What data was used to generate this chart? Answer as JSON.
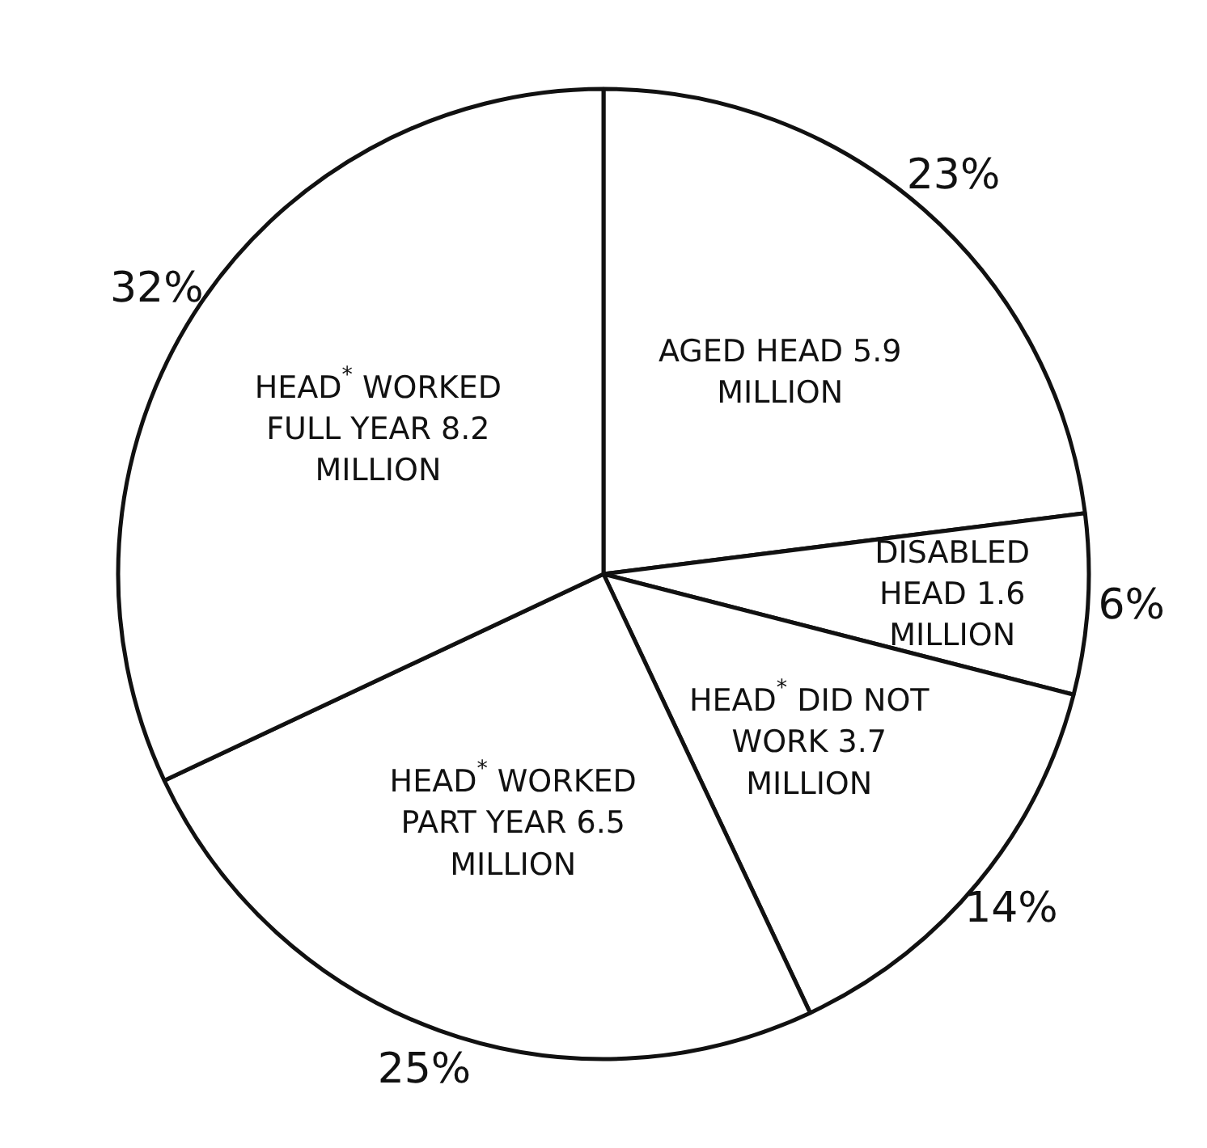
{
  "chart_data": {
    "type": "pie",
    "categories": [
      "AGED HEAD 5.9 MILLION",
      "DISABLED HEAD 1.6 MILLION",
      "HEAD$^{*}$ DID NOT WORK 3.7 MILLION",
      "HEAD$^{*}$ WORKED PART YEAR 6.5 MILLION",
      "HEAD$^{*}$ WORKED FULL YEAR 8.2 MILLION"
    ],
    "values": [
      23,
      6,
      14,
      25,
      32
    ],
    "value_labels": [
      "23%",
      "6%",
      "14%",
      "25%",
      "32%"
    ],
    "colors": [
      "#ffffff",
      "#ffffff",
      "#ffffff",
      "#ffffff",
      "#ffffff"
    ],
    "legend": false
  }
}
